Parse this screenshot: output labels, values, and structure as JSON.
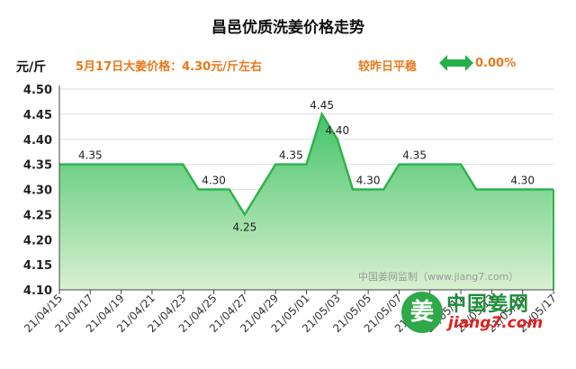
{
  "header": {
    "title": "昌邑优质洗姜价格走势",
    "unit": "元/斤",
    "price_text": "5月17日大姜价格：4.30元/斤左右",
    "compare_label": "较昨日平稳",
    "compare_value": "0.00%"
  },
  "colors": {
    "line": "#2fb34d",
    "fill_top": "#45c46a",
    "fill_bottom": "#d9f0d0",
    "accent": "#e8791c",
    "arrow": "#25b04a"
  },
  "watermark": "中国姜网监制（www.jiang7.com）",
  "logo": {
    "icon": "ginger-logo-icon",
    "mark": "姜",
    "name": "中国姜网",
    "url": "jiang7.com"
  },
  "chart_data": {
    "type": "area",
    "title": "昌邑优质洗姜价格走势",
    "ylabel": "元/斤",
    "ylim": [
      4.1,
      4.5
    ],
    "yticks": [
      "4.50",
      "4.45",
      "4.40",
      "4.35",
      "4.30",
      "4.25",
      "4.20",
      "4.15",
      "4.10"
    ],
    "xtick_labels": [
      "21/04/15",
      "21/04/17",
      "21/04/19",
      "21/04/21",
      "21/04/23",
      "21/04/25",
      "21/04/27",
      "21/04/29",
      "21/05/01",
      "21/05/03",
      "21/05/05",
      "21/05/07",
      "21/05/09",
      "21/05/11",
      "21/05/13",
      "21/05/15",
      "21/05/17"
    ],
    "series": [
      {
        "points": [
          {
            "x": "21/04/15",
            "y": 4.35
          },
          {
            "x": "21/04/23",
            "y": 4.35
          },
          {
            "x": "21/04/24",
            "y": 4.3
          },
          {
            "x": "21/04/26",
            "y": 4.3
          },
          {
            "x": "21/04/27",
            "y": 4.25
          },
          {
            "x": "21/04/29",
            "y": 4.35
          },
          {
            "x": "21/05/01",
            "y": 4.35
          },
          {
            "x": "21/05/02",
            "y": 4.45
          },
          {
            "x": "21/05/03",
            "y": 4.4
          },
          {
            "x": "21/05/04",
            "y": 4.3
          },
          {
            "x": "21/05/06",
            "y": 4.3
          },
          {
            "x": "21/05/07",
            "y": 4.35
          },
          {
            "x": "21/05/11",
            "y": 4.35
          },
          {
            "x": "21/05/12",
            "y": 4.3
          },
          {
            "x": "21/05/17",
            "y": 4.3
          }
        ]
      }
    ],
    "data_labels": [
      {
        "x": "21/04/17",
        "y": 4.35,
        "text": "4.35"
      },
      {
        "x": "21/04/25",
        "y": 4.3,
        "text": "4.30"
      },
      {
        "x": "21/04/27",
        "y": 4.25,
        "text": "4.25"
      },
      {
        "x": "21/04/30",
        "y": 4.35,
        "text": "4.35"
      },
      {
        "x": "21/05/02",
        "y": 4.45,
        "text": "4.45"
      },
      {
        "x": "21/05/03",
        "y": 4.4,
        "text": "4.40"
      },
      {
        "x": "21/05/05",
        "y": 4.3,
        "text": "4.30"
      },
      {
        "x": "21/05/08",
        "y": 4.35,
        "text": "4.35"
      },
      {
        "x": "21/05/15",
        "y": 4.3,
        "text": "4.30"
      }
    ],
    "grid": true,
    "legend": "none"
  }
}
